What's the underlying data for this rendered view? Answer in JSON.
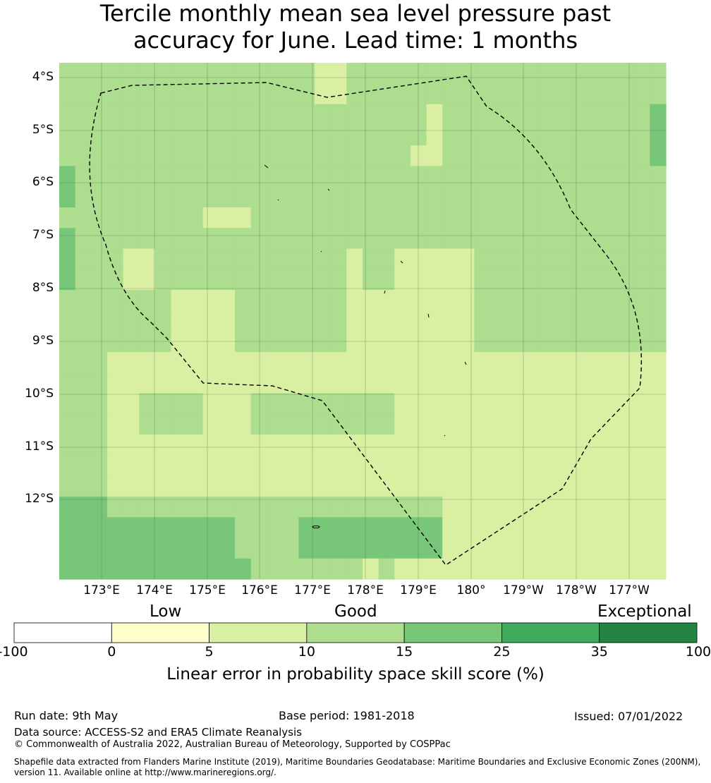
{
  "title": {
    "line1": "Tercile monthly mean sea level pressure past",
    "line2": "accuracy for June. Lead time: 1 months"
  },
  "map": {
    "lat_labels": [
      "4°S",
      "5°S",
      "6°S",
      "7°S",
      "8°S",
      "9°S",
      "10°S",
      "11°S",
      "12°S"
    ],
    "lon_labels": [
      "173°E",
      "174°E",
      "175°E",
      "176°E",
      "177°E",
      "178°E",
      "179°E",
      "180°",
      "179°W",
      "178°W",
      "177°W"
    ],
    "colors": {
      "c0": "#ffffcc",
      "c1": "#d9f0a3",
      "c2": "#addd8e",
      "c3": "#78c679",
      "c4": "#41ab5d",
      "c5": "#238443",
      "neg": "#ffffff"
    },
    "region_line": "dashed boundary",
    "score_grid": [
      "22222222222222221122222222222222222222",
      "22222222222222221122222222222222222222",
      "22222222222222222222222122222222222223",
      "22222222222222222222222122222222222223",
      "22222222222222222222221122222222222223",
      "32222222222222222222222222222222222222",
      "32222222222222222222222222222222222222",
      "22222222211122222222222222222222222222",
      "32222222222222222222222222222222222222",
      "32221122222222222212211111222222222222",
      "32221122222222222212211111222222222222",
      "22222221111222222211111111222222222222",
      "22222221111222222211111111222222222222",
      "22222221111222222211111111222222222222",
      "22211111111111111111111111111111111111",
      "22211111111111111111111111111111111111",
      "22211222211122222222211111111111111111",
      "22211222211122222222211111111111111111",
      "22211111111111111111111111111111111111",
      "22211111111111111111111111111111111111",
      "22211111111111111111111111111111111111",
      "33322222222222222222222211111111111111",
      "33333333333222233333333311111111111111",
      "33333333333222233333333311111111111111",
      "33333333333322222221211111111111111111"
    ]
  },
  "legend": {
    "categories": [
      "Low",
      "Good",
      "Exceptional"
    ],
    "ticks": [
      "-100",
      "0",
      "5",
      "10",
      "15",
      "25",
      "35",
      "100"
    ],
    "label": "Linear error in probability space skill score (%)"
  },
  "footer": {
    "run_date": "Run date: 9th May",
    "base_period": "Base period: 1981-2018",
    "issued": "Issued: 07/01/2022",
    "data_source": "Data source: ACCESS-S2 and ERA5 Climate Reanalysis",
    "copyright": "© Commonwealth of Australia 2022, Australian Bureau of Meteorology, Supported by COSPPac",
    "shapefile_1": "Shapefile data extracted from Flanders Marine Institute (2019), Maritime Boundaries Geodatabase: Maritime Boundaries and Exclusive Economic Zones (200NM),",
    "shapefile_2": "version 11. Available online at http://www.marineregions.org/."
  }
}
